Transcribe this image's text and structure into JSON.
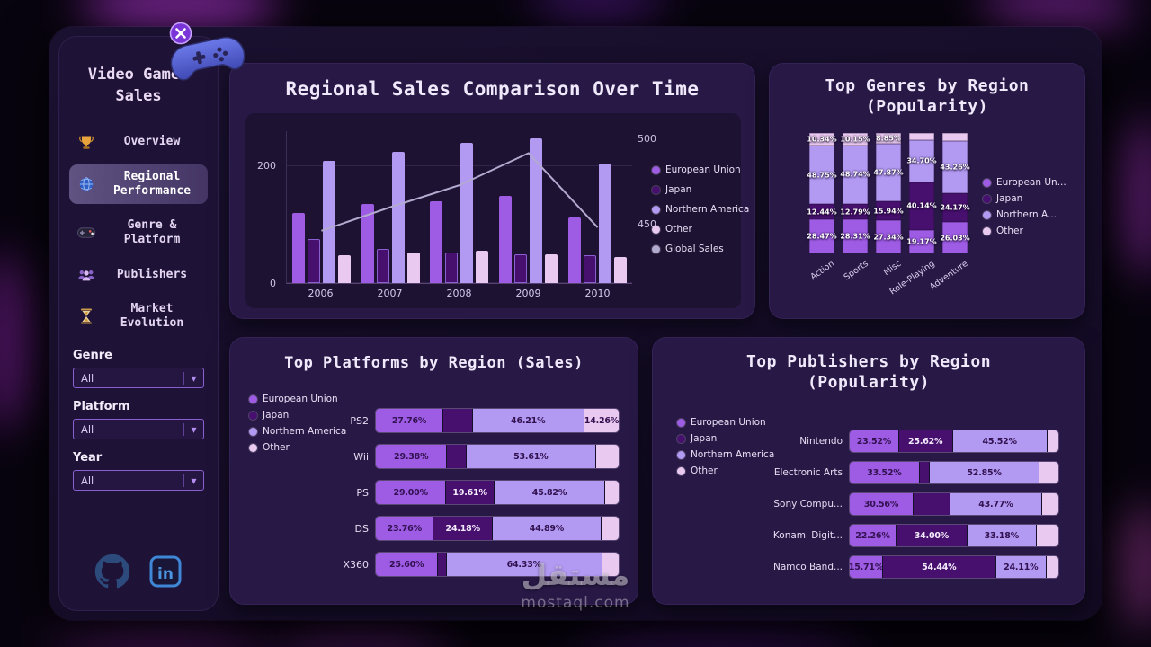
{
  "palette": {
    "eu": "#9e5be4",
    "japan": "#47106e",
    "na": "#b299f2",
    "other": "#eac9f1",
    "global": "#b2abcf",
    "accent": "#7b2ff7"
  },
  "watermark": {
    "title": "مستقل",
    "subtitle": "mostaql.com"
  },
  "sidebar": {
    "title": "Video Games Sales",
    "nav": [
      {
        "label": "Overview",
        "icon": "trophy-icon"
      },
      {
        "label": "Regional Performance",
        "icon": "globe-icon"
      },
      {
        "label": "Genre & Platform",
        "icon": "gamepad-icon"
      },
      {
        "label": "Publishers",
        "icon": "people-icon"
      },
      {
        "label": "Market Evolution",
        "icon": "hourglass-icon"
      }
    ],
    "filters": [
      {
        "label": "Genre",
        "value": "All"
      },
      {
        "label": "Platform",
        "value": "All"
      },
      {
        "label": "Year",
        "value": "All"
      }
    ],
    "socials": [
      "github-icon",
      "linkedin-icon"
    ]
  },
  "panels": {
    "sales_over_time": {
      "title": "Regional Sales Comparison Over Time"
    },
    "genres": {
      "title": "Top Genres by Region (Popularity)"
    },
    "platforms": {
      "title": "Top Platforms by Region (Sales)"
    },
    "publishers": {
      "title": "Top Publishers by Region (Popularity)"
    }
  },
  "chart_data": [
    {
      "type": "bar",
      "subtype": "combo-bar-line",
      "title": "Regional Sales Comparison Over Time",
      "x": [
        "2006",
        "2007",
        "2008",
        "2009",
        "2010"
      ],
      "series": [
        {
          "name": "European Union",
          "key": "eu",
          "values": [
            120,
            135,
            140,
            150,
            112
          ]
        },
        {
          "name": "Japan",
          "key": "japan",
          "values": [
            75,
            58,
            52,
            50,
            48
          ]
        },
        {
          "name": "Northern America",
          "key": "na",
          "values": [
            210,
            225,
            240,
            248,
            205
          ]
        },
        {
          "name": "Other",
          "key": "other",
          "values": [
            48,
            52,
            55,
            50,
            44
          ]
        }
      ],
      "line": {
        "name": "Global Sales",
        "key": "global",
        "values": [
          446,
          460,
          473,
          492,
          448
        ]
      },
      "left_axis": {
        "min": 0,
        "max": 260,
        "ticks": [
          0,
          200
        ]
      },
      "right_axis": {
        "min": 415,
        "max": 505,
        "ticks": [
          450,
          500
        ]
      },
      "legend_position": "right"
    },
    {
      "type": "bar",
      "subtype": "stacked-column-100",
      "title": "Top Genres by Region (Popularity)",
      "categories": [
        "Action",
        "Sports",
        "Misc",
        "Role-Playing",
        "Adventure"
      ],
      "series": [
        {
          "name": "European Union",
          "key": "eu",
          "values": [
            28.47,
            28.31,
            27.34,
            19.17,
            26.03
          ],
          "labels": [
            "28.47%",
            "28.31%",
            "27.34%",
            "19.17%",
            "26.03%"
          ]
        },
        {
          "name": "Japan",
          "key": "japan",
          "values": [
            12.44,
            12.79,
            15.94,
            40.14,
            24.17
          ],
          "labels": [
            "12.44%",
            "12.79%",
            "15.94%",
            "40.14%",
            "24.17%"
          ]
        },
        {
          "name": "Northern America",
          "key": "na",
          "values": [
            48.75,
            48.74,
            47.87,
            34.7,
            43.26
          ],
          "labels": [
            "48.75%",
            "48.74%",
            "47.87%",
            "34.70%",
            "43.26%"
          ]
        },
        {
          "name": "Other",
          "key": "other",
          "values": [
            10.34,
            10.15,
            8.85,
            5.99,
            6.54
          ],
          "labels": [
            "10.34%",
            "10.15%",
            "8.85%",
            "",
            ""
          ]
        }
      ],
      "legend": [
        "European Un...",
        "Japan",
        "Northern A...",
        "Other"
      ],
      "legend_position": "right"
    },
    {
      "type": "bar",
      "subtype": "stacked-bar-horizontal-100",
      "title": "Top Platforms by Region (Sales)",
      "rows": [
        {
          "label": "PS2",
          "segments": [
            {
              "key": "eu",
              "value": 27.76,
              "label": "27.76%"
            },
            {
              "key": "japan",
              "value": 11.77,
              "label": ""
            },
            {
              "key": "na",
              "value": 46.21,
              "label": "46.21%"
            },
            {
              "key": "other",
              "value": 14.26,
              "label": "14.26%"
            }
          ]
        },
        {
          "label": "Wii",
          "segments": [
            {
              "key": "eu",
              "value": 29.38,
              "label": "29.38%"
            },
            {
              "key": "japan",
              "value": 7.6,
              "label": ""
            },
            {
              "key": "na",
              "value": 53.61,
              "label": "53.61%"
            },
            {
              "key": "other",
              "value": 9.41,
              "label": ""
            }
          ]
        },
        {
          "label": "PS",
          "segments": [
            {
              "key": "eu",
              "value": 29.0,
              "label": "29.00%"
            },
            {
              "key": "japan",
              "value": 19.61,
              "label": "19.61%"
            },
            {
              "key": "na",
              "value": 45.82,
              "label": "45.82%"
            },
            {
              "key": "other",
              "value": 5.57,
              "label": ""
            }
          ]
        },
        {
          "label": "DS",
          "segments": [
            {
              "key": "eu",
              "value": 23.76,
              "label": "23.76%"
            },
            {
              "key": "japan",
              "value": 24.18,
              "label": "24.18%"
            },
            {
              "key": "na",
              "value": 44.89,
              "label": "44.89%"
            },
            {
              "key": "other",
              "value": 7.17,
              "label": ""
            }
          ]
        },
        {
          "label": "X360",
          "segments": [
            {
              "key": "eu",
              "value": 25.6,
              "label": "25.60%"
            },
            {
              "key": "japan",
              "value": 3.2,
              "label": ""
            },
            {
              "key": "na",
              "value": 64.33,
              "label": "64.33%"
            },
            {
              "key": "other",
              "value": 6.87,
              "label": ""
            }
          ]
        }
      ],
      "legend": [
        "European Union",
        "Japan",
        "Northern America",
        "Other"
      ],
      "legend_position": "left"
    },
    {
      "type": "bar",
      "subtype": "stacked-bar-horizontal-100",
      "title": "Top Publishers by Region (Popularity)",
      "rows": [
        {
          "label": "Nintendo",
          "segments": [
            {
              "key": "eu",
              "value": 23.52,
              "label": "23.52%"
            },
            {
              "key": "japan",
              "value": 25.62,
              "label": "25.62%"
            },
            {
              "key": "na",
              "value": 45.52,
              "label": "45.52%"
            },
            {
              "key": "other",
              "value": 5.34,
              "label": ""
            }
          ]
        },
        {
          "label": "Electronic Arts",
          "segments": [
            {
              "key": "eu",
              "value": 33.52,
              "label": "33.52%"
            },
            {
              "key": "japan",
              "value": 4.5,
              "label": ""
            },
            {
              "key": "na",
              "value": 52.85,
              "label": "52.85%"
            },
            {
              "key": "other",
              "value": 9.13,
              "label": ""
            }
          ]
        },
        {
          "label": "Sony Compu...",
          "segments": [
            {
              "key": "eu",
              "value": 30.56,
              "label": "30.56%"
            },
            {
              "key": "japan",
              "value": 17.6,
              "label": ""
            },
            {
              "key": "na",
              "value": 43.77,
              "label": "43.77%"
            },
            {
              "key": "other",
              "value": 8.07,
              "label": ""
            }
          ]
        },
        {
          "label": "Konami Digit...",
          "segments": [
            {
              "key": "eu",
              "value": 22.26,
              "label": "22.26%"
            },
            {
              "key": "japan",
              "value": 34.0,
              "label": "34.00%"
            },
            {
              "key": "na",
              "value": 33.18,
              "label": "33.18%"
            },
            {
              "key": "other",
              "value": 10.56,
              "label": ""
            }
          ]
        },
        {
          "label": "Namco Band...",
          "segments": [
            {
              "key": "eu",
              "value": 15.71,
              "label": "15.71%"
            },
            {
              "key": "japan",
              "value": 54.44,
              "label": "54.44%"
            },
            {
              "key": "na",
              "value": 24.11,
              "label": "24.11%"
            },
            {
              "key": "other",
              "value": 5.74,
              "label": ""
            }
          ]
        }
      ],
      "legend": [
        "European Union",
        "Japan",
        "Northern America",
        "Other"
      ],
      "legend_position": "left"
    }
  ]
}
